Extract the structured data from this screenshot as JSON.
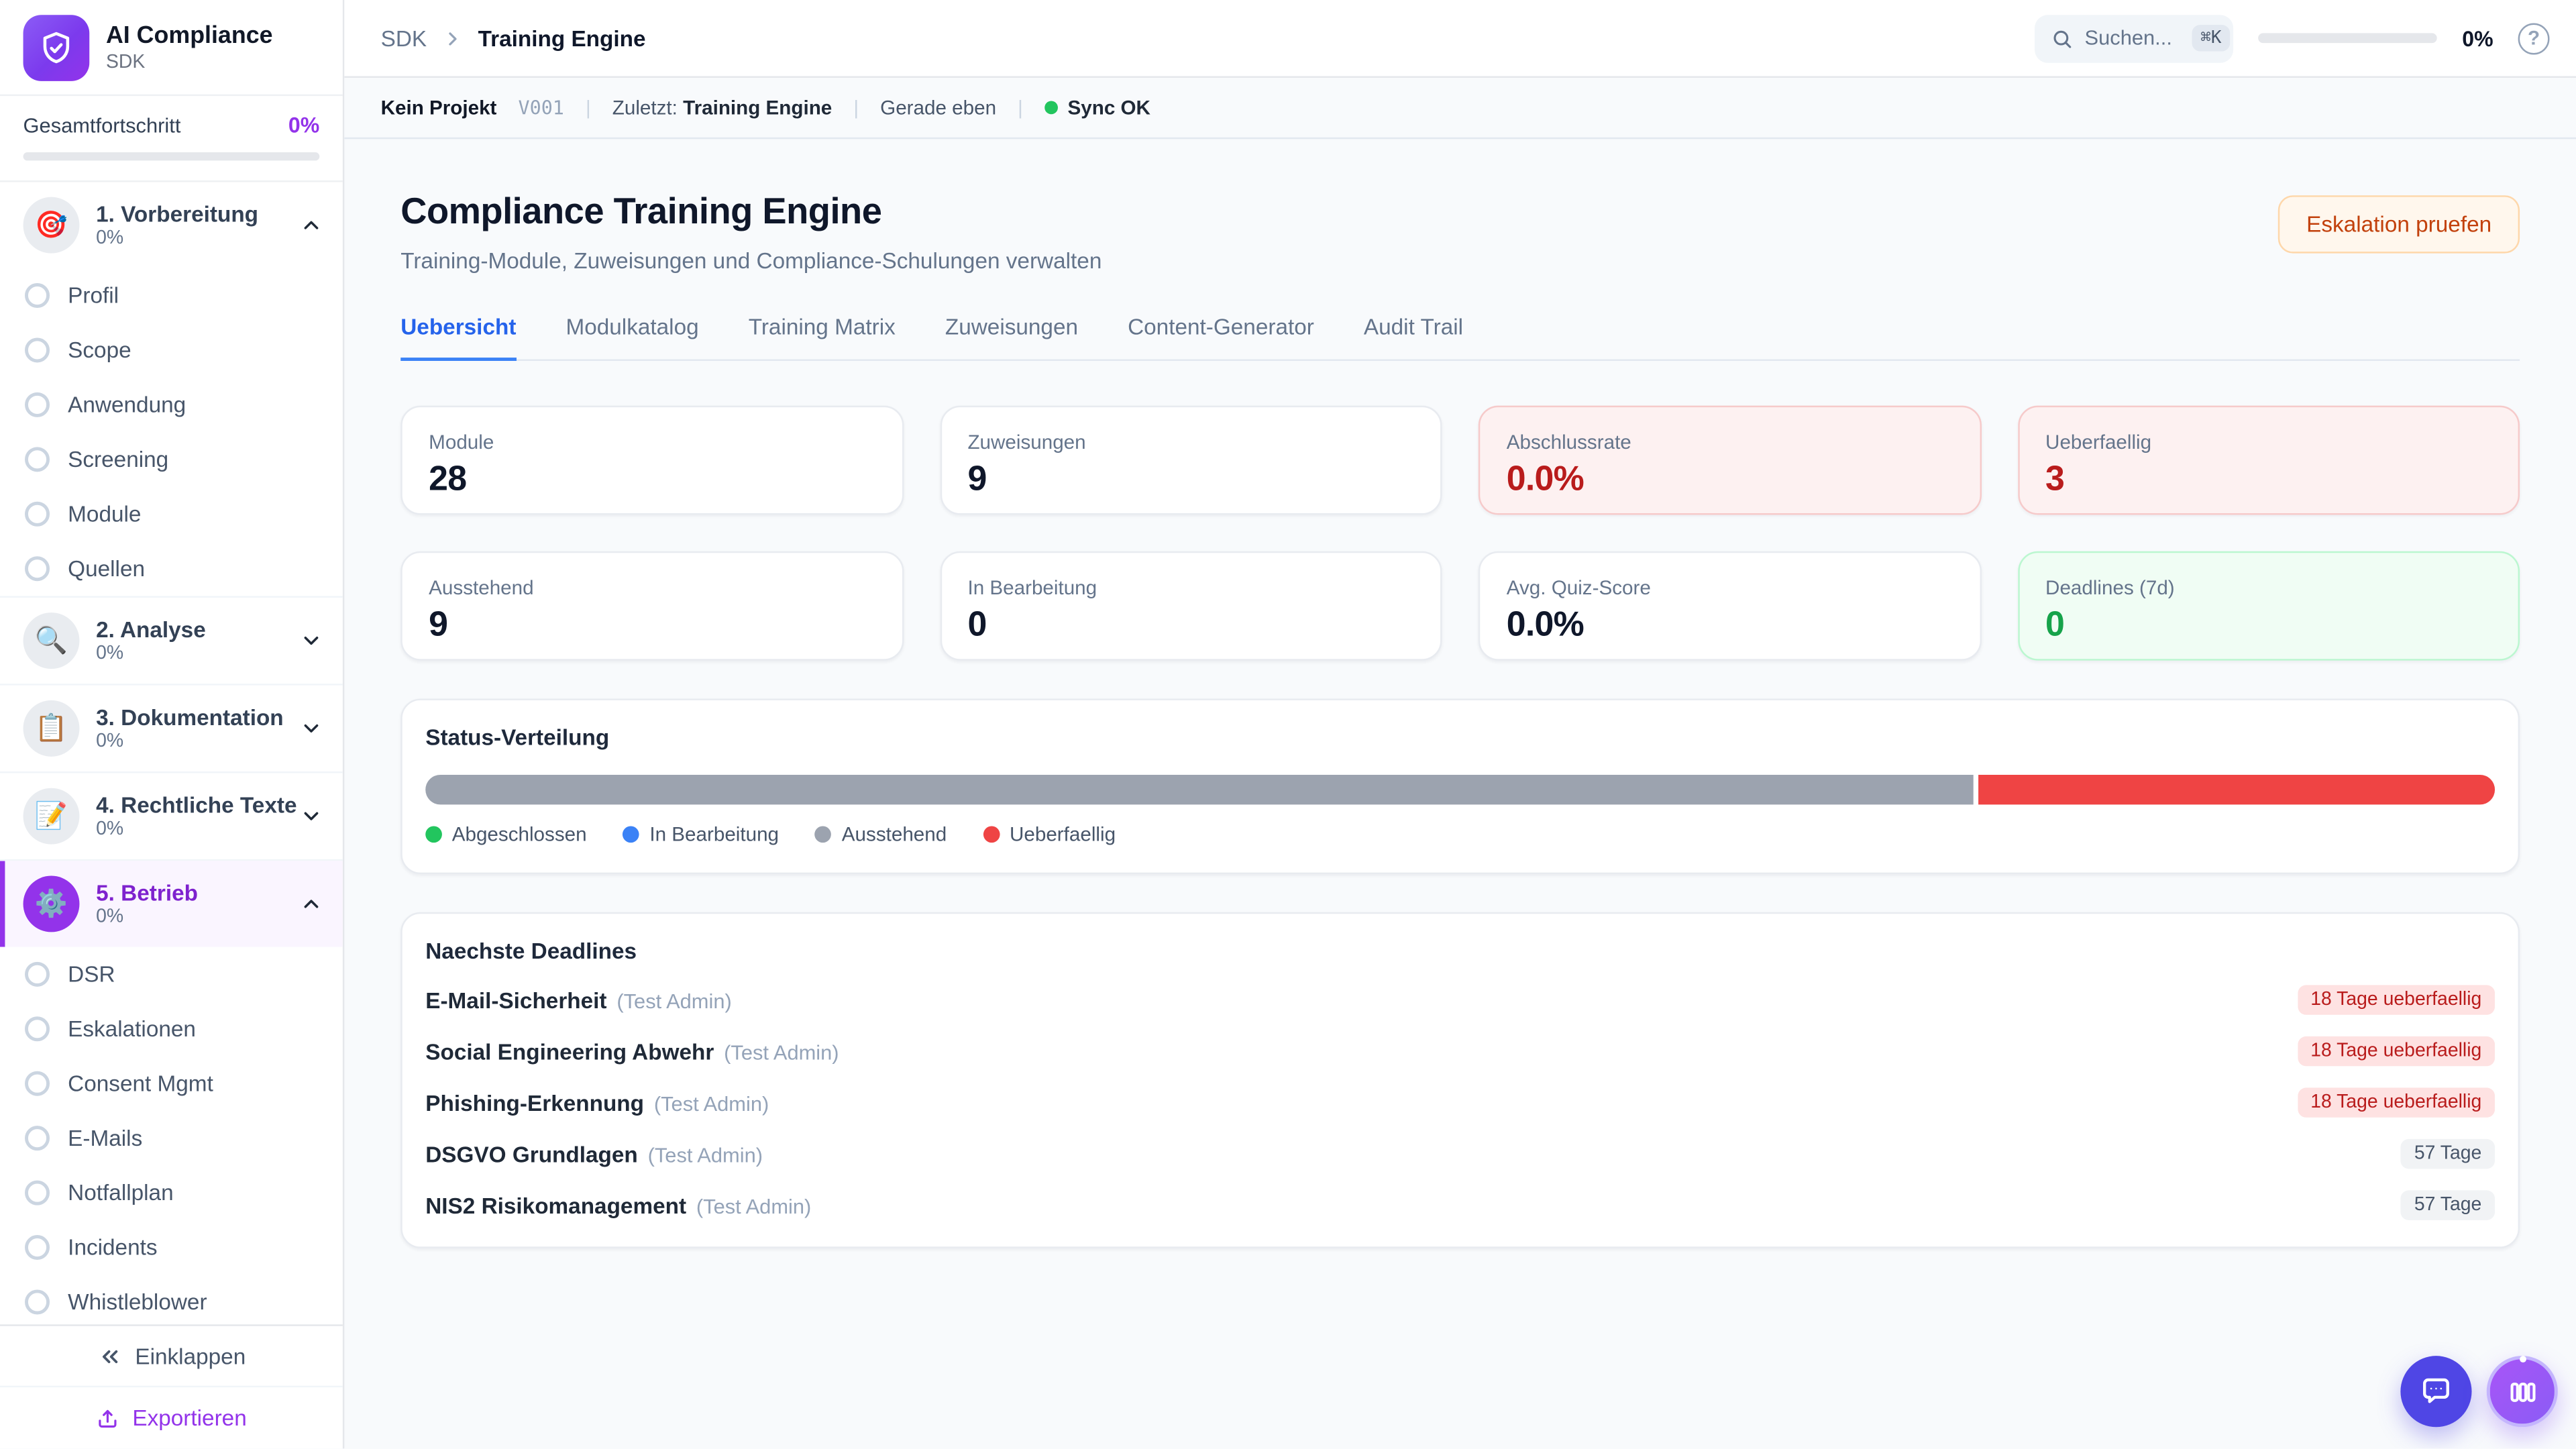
{
  "colors": {
    "accent_purple": "#9333ea",
    "tab_active_blue": "#2563eb",
    "danger_red": "#ef4444",
    "success_green": "#22c55e",
    "warning_orange": "#c2410c",
    "bar_gray": "#9ca3af"
  },
  "sidebar": {
    "brand": {
      "title": "AI Compliance",
      "subtitle": "SDK"
    },
    "progress": {
      "label": "Gesamtfortschritt",
      "value": "0%",
      "percent": 0
    },
    "sections": [
      {
        "label": "1. Vorbereitung",
        "percent": "0%",
        "icon": "🎯",
        "expanded": true,
        "active": false,
        "items": [
          "Profil",
          "Scope",
          "Anwendung",
          "Screening",
          "Module",
          "Quellen"
        ]
      },
      {
        "label": "2. Analyse",
        "percent": "0%",
        "icon": "🔍",
        "expanded": false,
        "active": false,
        "items": []
      },
      {
        "label": "3. Dokumentation",
        "percent": "0%",
        "icon": "📋",
        "expanded": false,
        "active": false,
        "items": []
      },
      {
        "label": "4. Rechtliche Texte",
        "percent": "0%",
        "icon": "📝",
        "expanded": false,
        "active": false,
        "items": []
      },
      {
        "label": "5. Betrieb",
        "percent": "0%",
        "icon": "⚙️",
        "expanded": true,
        "active": true,
        "items": [
          "DSR",
          "Eskalationen",
          "Consent Mgmt",
          "E-Mails",
          "Notfallplan",
          "Incidents",
          "Whistleblower"
        ]
      }
    ],
    "footer": {
      "collapse_label": "Einklappen",
      "export_label": "Exportieren"
    }
  },
  "topbar": {
    "breadcrumb": {
      "root": "SDK",
      "current": "Training Engine"
    },
    "search": {
      "placeholder": "Suchen...",
      "shortcut": "⌘K"
    },
    "progress": {
      "value": "0%",
      "percent": 0
    },
    "help_icon": "circle-question"
  },
  "statusbar": {
    "project": "Kein Projekt",
    "version": "V001",
    "last_label": "Zuletzt:",
    "last_value": "Training Engine",
    "time": "Gerade eben",
    "sync": "Sync OK"
  },
  "page": {
    "title": "Compliance Training Engine",
    "subtitle": "Training-Module, Zuweisungen und Compliance-Schulungen verwalten",
    "action_button": "Eskalation pruefen"
  },
  "tabs": {
    "active_index": 0,
    "items": [
      "Uebersicht",
      "Modulkatalog",
      "Training Matrix",
      "Zuweisungen",
      "Content-Generator",
      "Audit Trail"
    ]
  },
  "stats": {
    "cards": [
      {
        "label": "Module",
        "value": "28",
        "variant": "default"
      },
      {
        "label": "Zuweisungen",
        "value": "9",
        "variant": "default"
      },
      {
        "label": "Abschlussrate",
        "value": "0.0%",
        "variant": "danger"
      },
      {
        "label": "Ueberfaellig",
        "value": "3",
        "variant": "danger"
      },
      {
        "label": "Ausstehend",
        "value": "9",
        "variant": "default"
      },
      {
        "label": "In Bearbeitung",
        "value": "0",
        "variant": "default"
      },
      {
        "label": "Avg. Quiz-Score",
        "value": "0.0%",
        "variant": "default"
      },
      {
        "label": "Deadlines (7d)",
        "value": "0",
        "variant": "success"
      }
    ]
  },
  "status_distribution": {
    "title": "Status-Verteilung",
    "segments": [
      {
        "label": "Ausstehend",
        "percent": 75,
        "color": "#9ca3af"
      },
      {
        "label": "Ueberfaellig",
        "percent": 25,
        "color": "#ef4444"
      }
    ],
    "legend": [
      {
        "label": "Abgeschlossen",
        "color": "#22c55e"
      },
      {
        "label": "In Bearbeitung",
        "color": "#3b82f6"
      },
      {
        "label": "Ausstehend",
        "color": "#9ca3af"
      },
      {
        "label": "Ueberfaellig",
        "color": "#ef4444"
      }
    ]
  },
  "deadlines": {
    "title": "Naechste Deadlines",
    "rows": [
      {
        "module": "E-Mail-Sicherheit",
        "assignee": "(Test Admin)",
        "badge": "18 Tage ueberfaellig",
        "overdue": true
      },
      {
        "module": "Social Engineering Abwehr",
        "assignee": "(Test Admin)",
        "badge": "18 Tage ueberfaellig",
        "overdue": true
      },
      {
        "module": "Phishing-Erkennung",
        "assignee": "(Test Admin)",
        "badge": "18 Tage ueberfaellig",
        "overdue": true
      },
      {
        "module": "DSGVO Grundlagen",
        "assignee": "(Test Admin)",
        "badge": "57 Tage",
        "overdue": false
      },
      {
        "module": "NIS2 Risikomanagement",
        "assignee": "(Test Admin)",
        "badge": "57 Tage",
        "overdue": false
      }
    ]
  }
}
